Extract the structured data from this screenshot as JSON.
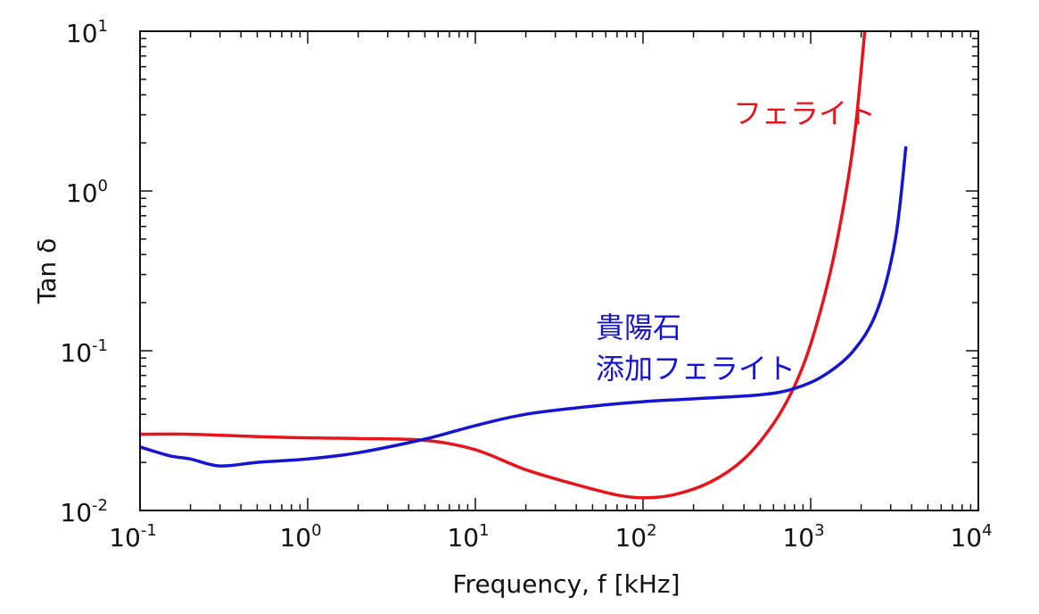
{
  "chart_data": {
    "type": "line",
    "title": "",
    "xlabel": "Frequency, f [kHz]",
    "ylabel": "Tan δ",
    "x_scale": "log",
    "y_scale": "log",
    "xlim": [
      0.1,
      10000
    ],
    "ylim": [
      0.01,
      10
    ],
    "x_ticks": [
      {
        "value": 0.1,
        "base": "10",
        "exp": "-1"
      },
      {
        "value": 1,
        "base": "10",
        "exp": "0"
      },
      {
        "value": 10,
        "base": "10",
        "exp": "1"
      },
      {
        "value": 100,
        "base": "10",
        "exp": "2"
      },
      {
        "value": 1000,
        "base": "10",
        "exp": "3"
      },
      {
        "value": 10000,
        "base": "10",
        "exp": "4"
      }
    ],
    "y_ticks": [
      {
        "value": 0.01,
        "base": "10",
        "exp": "-2"
      },
      {
        "value": 0.1,
        "base": "10",
        "exp": "-1"
      },
      {
        "value": 1,
        "base": "10",
        "exp": "0"
      },
      {
        "value": 10,
        "base": "10",
        "exp": "1"
      }
    ],
    "grid": false,
    "series": [
      {
        "name": "フェライト",
        "color": "#e8141c",
        "points": [
          [
            0.1,
            0.03
          ],
          [
            0.2,
            0.03
          ],
          [
            0.5,
            0.029
          ],
          [
            1,
            0.0285
          ],
          [
            2,
            0.0282
          ],
          [
            5,
            0.0275
          ],
          [
            10,
            0.024
          ],
          [
            20,
            0.018
          ],
          [
            40,
            0.0145
          ],
          [
            70,
            0.0125
          ],
          [
            100,
            0.012
          ],
          [
            150,
            0.0125
          ],
          [
            250,
            0.015
          ],
          [
            400,
            0.021
          ],
          [
            600,
            0.035
          ],
          [
            800,
            0.06
          ],
          [
            1000,
            0.11
          ],
          [
            1300,
            0.3
          ],
          [
            1600,
            0.9
          ],
          [
            1850,
            2.5
          ],
          [
            2100,
            10
          ]
        ]
      },
      {
        "name": "貴陽石 添加フェライト",
        "color": "#1414d2",
        "points": [
          [
            0.1,
            0.025
          ],
          [
            0.15,
            0.022
          ],
          [
            0.2,
            0.021
          ],
          [
            0.3,
            0.019
          ],
          [
            0.5,
            0.02
          ],
          [
            1,
            0.021
          ],
          [
            2,
            0.023
          ],
          [
            5,
            0.028
          ],
          [
            10,
            0.034
          ],
          [
            20,
            0.04
          ],
          [
            50,
            0.045
          ],
          [
            100,
            0.048
          ],
          [
            200,
            0.05
          ],
          [
            500,
            0.053
          ],
          [
            800,
            0.058
          ],
          [
            1200,
            0.07
          ],
          [
            1800,
            0.1
          ],
          [
            2500,
            0.18
          ],
          [
            3200,
            0.5
          ],
          [
            3700,
            1.9
          ]
        ]
      }
    ],
    "annotations": [
      {
        "text": "フェライト",
        "series": 0
      },
      {
        "text": "貴陽石",
        "series": 1
      },
      {
        "text": "添加フェライト",
        "series": 1
      }
    ]
  }
}
